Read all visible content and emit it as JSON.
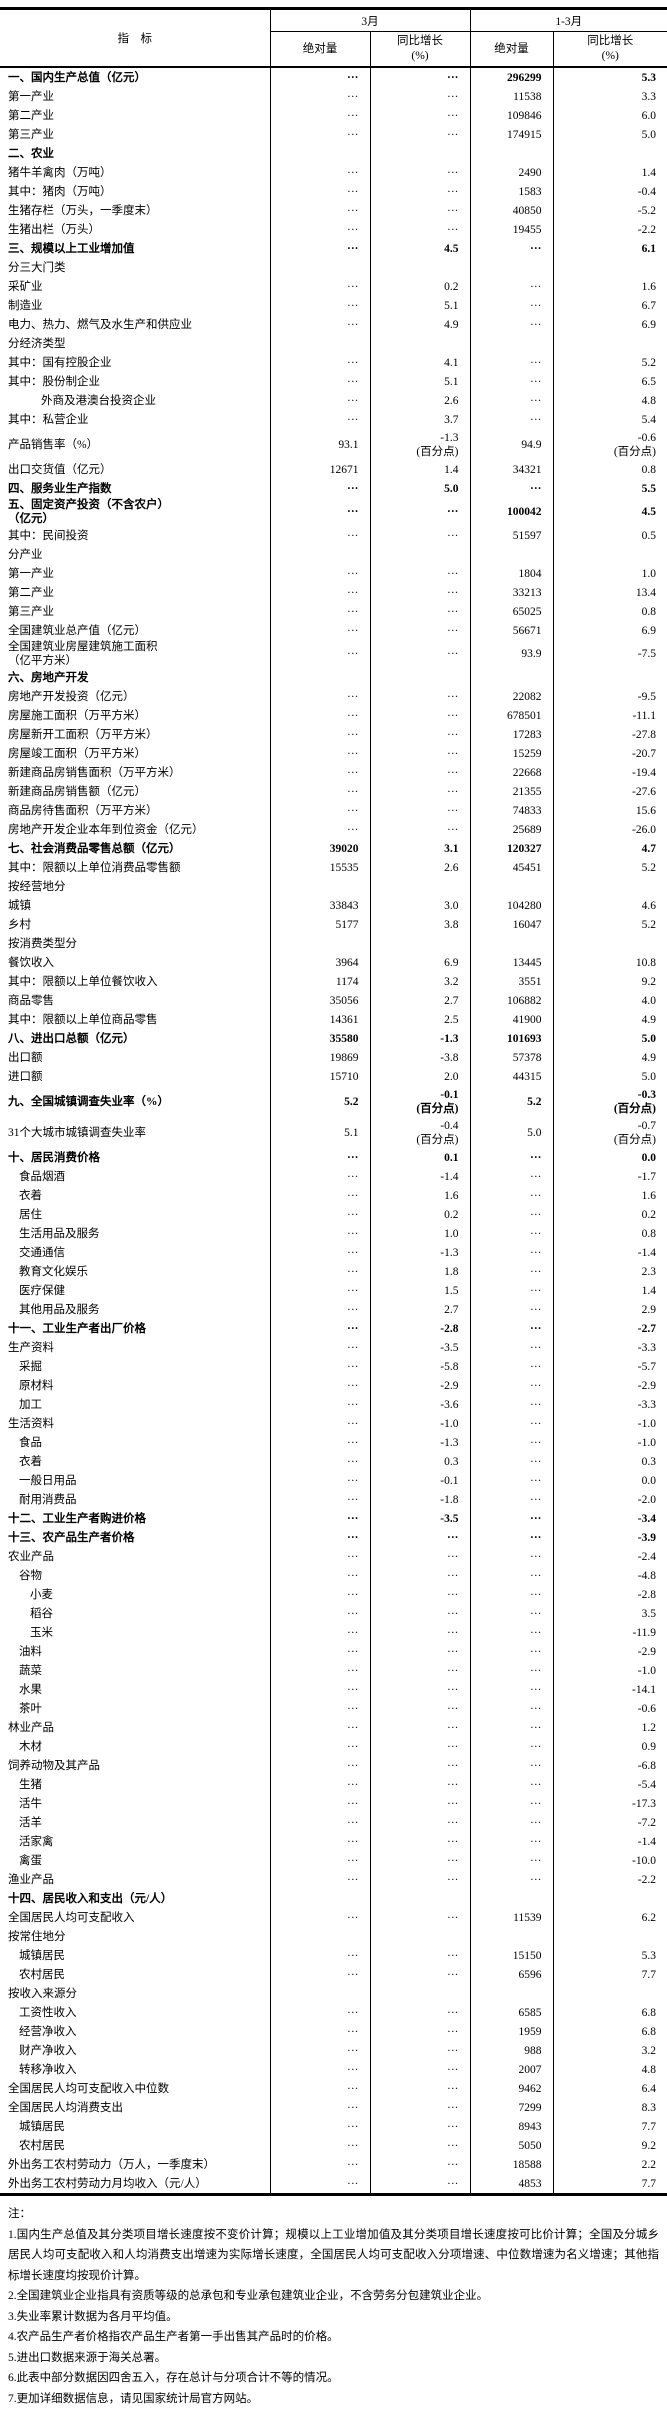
{
  "table": {
    "header": {
      "indicator": "指　标",
      "month_group": "3月",
      "quarter_group": "1-3月",
      "abs_label": "绝对量",
      "yoy_label": "同比增长",
      "yoy_unit": "(%)"
    },
    "rows": [
      {
        "label": "一、国内生产总值（亿元）",
        "bold": true,
        "m_abs": "···",
        "m_yoy": "···",
        "q_abs": "296299",
        "q_yoy": "5.3"
      },
      {
        "label": "第一产业",
        "m_abs": "···",
        "m_yoy": "···",
        "q_abs": "11538",
        "q_yoy": "3.3"
      },
      {
        "label": "第二产业",
        "m_abs": "···",
        "m_yoy": "···",
        "q_abs": "109846",
        "q_yoy": "6.0"
      },
      {
        "label": "第三产业",
        "m_abs": "···",
        "m_yoy": "···",
        "q_abs": "174915",
        "q_yoy": "5.0"
      },
      {
        "label": "二、农业",
        "bold": true
      },
      {
        "label": "猪牛羊禽肉（万吨）",
        "m_abs": "···",
        "m_yoy": "···",
        "q_abs": "2490",
        "q_yoy": "1.4"
      },
      {
        "label": "其中：猪肉（万吨）",
        "m_abs": "···",
        "m_yoy": "···",
        "q_abs": "1583",
        "q_yoy": "-0.4"
      },
      {
        "label": "生猪存栏（万头，一季度末）",
        "m_abs": "···",
        "m_yoy": "···",
        "q_abs": "40850",
        "q_yoy": "-5.2"
      },
      {
        "label": "生猪出栏（万头）",
        "m_abs": "···",
        "m_yoy": "···",
        "q_abs": "19455",
        "q_yoy": "-2.2"
      },
      {
        "label": "三、规模以上工业增加值",
        "bold": true,
        "m_abs": "···",
        "m_yoy": "4.5",
        "q_abs": "···",
        "q_yoy": "6.1"
      },
      {
        "label": "分三大门类"
      },
      {
        "label": "采矿业",
        "m_abs": "···",
        "m_yoy": "0.2",
        "q_abs": "···",
        "q_yoy": "1.6"
      },
      {
        "label": "制造业",
        "m_abs": "···",
        "m_yoy": "5.1",
        "q_abs": "···",
        "q_yoy": "6.7"
      },
      {
        "label": "电力、热力、燃气及水生产和供应业",
        "m_abs": "···",
        "m_yoy": "4.9",
        "q_abs": "···",
        "q_yoy": "6.9"
      },
      {
        "label": "分经济类型"
      },
      {
        "label": "其中：国有控股企业",
        "m_abs": "···",
        "m_yoy": "4.1",
        "q_abs": "···",
        "q_yoy": "5.2"
      },
      {
        "label": "其中：股份制企业",
        "m_abs": "···",
        "m_yoy": "5.1",
        "q_abs": "···",
        "q_yoy": "6.5"
      },
      {
        "label": "外商及港澳台投资企业",
        "indent": 3,
        "m_abs": "···",
        "m_yoy": "2.6",
        "q_abs": "···",
        "q_yoy": "4.8"
      },
      {
        "label": "其中：私营企业",
        "m_abs": "···",
        "m_yoy": "3.7",
        "q_abs": "···",
        "q_yoy": "5.4"
      },
      {
        "label": "产品销售率（%）",
        "tall": true,
        "m_abs": "93.1",
        "m_yoy": "-1.3",
        "m_yoy_note": "(百分点)",
        "q_abs": "94.9",
        "q_yoy": "-0.6",
        "q_yoy_note": "(百分点)"
      },
      {
        "label": "出口交货值（亿元）",
        "m_abs": "12671",
        "m_yoy": "1.4",
        "q_abs": "34321",
        "q_yoy": "0.8"
      },
      {
        "label": "四、服务业生产指数",
        "bold": true,
        "m_abs": "···",
        "m_yoy": "5.0",
        "q_abs": "···",
        "q_yoy": "5.5"
      },
      {
        "label": "五、固定资产投资（不含农户）",
        "label2": "（亿元）",
        "bold": true,
        "m_abs": "···",
        "m_yoy": "···",
        "q_abs": "100042",
        "q_yoy": "4.5"
      },
      {
        "label": "其中：民间投资",
        "m_abs": "···",
        "m_yoy": "···",
        "q_abs": "51597",
        "q_yoy": "0.5"
      },
      {
        "label": "分产业"
      },
      {
        "label": "第一产业",
        "m_abs": "···",
        "m_yoy": "···",
        "q_abs": "1804",
        "q_yoy": "1.0"
      },
      {
        "label": "第二产业",
        "m_abs": "···",
        "m_yoy": "···",
        "q_abs": "33213",
        "q_yoy": "13.4"
      },
      {
        "label": "第三产业",
        "m_abs": "···",
        "m_yoy": "···",
        "q_abs": "65025",
        "q_yoy": "0.8"
      },
      {
        "label": "全国建筑业总产值（亿元）",
        "m_abs": "···",
        "m_yoy": "···",
        "q_abs": "56671",
        "q_yoy": "6.9"
      },
      {
        "label": "全国建筑业房屋建筑施工面积",
        "label2": "（亿平方米）",
        "m_abs": "···",
        "m_yoy": "···",
        "q_abs": "93.9",
        "q_yoy": "-7.5"
      },
      {
        "label": "六、房地产开发",
        "bold": true
      },
      {
        "label": "房地产开发投资（亿元）",
        "m_abs": "···",
        "m_yoy": "···",
        "q_abs": "22082",
        "q_yoy": "-9.5"
      },
      {
        "label": "房屋施工面积（万平方米）",
        "m_abs": "···",
        "m_yoy": "···",
        "q_abs": "678501",
        "q_yoy": "-11.1"
      },
      {
        "label": "房屋新开工面积（万平方米）",
        "m_abs": "···",
        "m_yoy": "···",
        "q_abs": "17283",
        "q_yoy": "-27.8"
      },
      {
        "label": "房屋竣工面积（万平方米）",
        "m_abs": "···",
        "m_yoy": "···",
        "q_abs": "15259",
        "q_yoy": "-20.7"
      },
      {
        "label": "新建商品房销售面积（万平方米）",
        "m_abs": "···",
        "m_yoy": "···",
        "q_abs": "22668",
        "q_yoy": "-19.4"
      },
      {
        "label": "新建商品房销售额（亿元）",
        "m_abs": "···",
        "m_yoy": "···",
        "q_abs": "21355",
        "q_yoy": "-27.6"
      },
      {
        "label": "商品房待售面积（万平方米）",
        "m_abs": "···",
        "m_yoy": "···",
        "q_abs": "74833",
        "q_yoy": "15.6"
      },
      {
        "label": "房地产开发企业本年到位资金（亿元）",
        "m_abs": "···",
        "m_yoy": "···",
        "q_abs": "25689",
        "q_yoy": "-26.0"
      },
      {
        "label": "七、社会消费品零售总额（亿元）",
        "bold": true,
        "m_abs": "39020",
        "m_yoy": "3.1",
        "q_abs": "120327",
        "q_yoy": "4.7"
      },
      {
        "label": "其中：限额以上单位消费品零售额",
        "m_abs": "15535",
        "m_yoy": "2.6",
        "q_abs": "45451",
        "q_yoy": "5.2"
      },
      {
        "label": "按经营地分"
      },
      {
        "label": "城镇",
        "m_abs": "33843",
        "m_yoy": "3.0",
        "q_abs": "104280",
        "q_yoy": "4.6"
      },
      {
        "label": "乡村",
        "m_abs": "5177",
        "m_yoy": "3.8",
        "q_abs": "16047",
        "q_yoy": "5.2"
      },
      {
        "label": "按消费类型分"
      },
      {
        "label": "餐饮收入",
        "m_abs": "3964",
        "m_yoy": "6.9",
        "q_abs": "13445",
        "q_yoy": "10.8"
      },
      {
        "label": "其中：限额以上单位餐饮收入",
        "m_abs": "1174",
        "m_yoy": "3.2",
        "q_abs": "3551",
        "q_yoy": "9.2"
      },
      {
        "label": "商品零售",
        "m_abs": "35056",
        "m_yoy": "2.7",
        "q_abs": "106882",
        "q_yoy": "4.0"
      },
      {
        "label": "其中：限额以上单位商品零售",
        "m_abs": "14361",
        "m_yoy": "2.5",
        "q_abs": "41900",
        "q_yoy": "4.9"
      },
      {
        "label": "八、进出口总额（亿元）",
        "bold": true,
        "m_abs": "35580",
        "m_yoy": "-1.3",
        "q_abs": "101693",
        "q_yoy": "5.0"
      },
      {
        "label": "出口额",
        "m_abs": "19869",
        "m_yoy": "-3.8",
        "q_abs": "57378",
        "q_yoy": "4.9"
      },
      {
        "label": "进口额",
        "m_abs": "15710",
        "m_yoy": "2.0",
        "q_abs": "44315",
        "q_yoy": "5.0"
      },
      {
        "label": "九、全国城镇调查失业率（%）",
        "bold": true,
        "tall": true,
        "m_abs": "5.2",
        "m_yoy": "-0.1",
        "m_yoy_note": "(百分点)",
        "q_abs": "5.2",
        "q_yoy": "-0.3",
        "q_yoy_note": "(百分点)"
      },
      {
        "label": "31个大城市城镇调查失业率",
        "tall": true,
        "m_abs": "5.1",
        "m_yoy": "-0.4",
        "m_yoy_note": "(百分点)",
        "q_abs": "5.0",
        "q_yoy": "-0.7",
        "q_yoy_note": "(百分点)"
      },
      {
        "label": "十、居民消费价格",
        "bold": true,
        "m_abs": "···",
        "m_yoy": "0.1",
        "q_abs": "···",
        "q_yoy": "0.0"
      },
      {
        "label": "食品烟酒",
        "indent": 1,
        "m_abs": "···",
        "m_yoy": "-1.4",
        "q_abs": "···",
        "q_yoy": "-1.7"
      },
      {
        "label": "衣着",
        "indent": 1,
        "m_abs": "···",
        "m_yoy": "1.6",
        "q_abs": "···",
        "q_yoy": "1.6"
      },
      {
        "label": "居住",
        "indent": 1,
        "m_abs": "···",
        "m_yoy": "0.2",
        "q_abs": "···",
        "q_yoy": "0.2"
      },
      {
        "label": "生活用品及服务",
        "indent": 1,
        "m_abs": "···",
        "m_yoy": "1.0",
        "q_abs": "···",
        "q_yoy": "0.8"
      },
      {
        "label": "交通通信",
        "indent": 1,
        "m_abs": "···",
        "m_yoy": "-1.3",
        "q_abs": "···",
        "q_yoy": "-1.4"
      },
      {
        "label": "教育文化娱乐",
        "indent": 1,
        "m_abs": "···",
        "m_yoy": "1.8",
        "q_abs": "···",
        "q_yoy": "2.3"
      },
      {
        "label": "医疗保健",
        "indent": 1,
        "m_abs": "···",
        "m_yoy": "1.5",
        "q_abs": "···",
        "q_yoy": "1.4"
      },
      {
        "label": "其他用品及服务",
        "indent": 1,
        "m_abs": "···",
        "m_yoy": "2.7",
        "q_abs": "···",
        "q_yoy": "2.9"
      },
      {
        "label": "十一、工业生产者出厂价格",
        "bold": true,
        "m_abs": "···",
        "m_yoy": "-2.8",
        "q_abs": "···",
        "q_yoy": "-2.7"
      },
      {
        "label": "生产资料",
        "m_abs": "···",
        "m_yoy": "-3.5",
        "q_abs": "···",
        "q_yoy": "-3.3"
      },
      {
        "label": "采掘",
        "indent": 1,
        "m_abs": "···",
        "m_yoy": "-5.8",
        "q_abs": "···",
        "q_yoy": "-5.7"
      },
      {
        "label": "原材料",
        "indent": 1,
        "m_abs": "···",
        "m_yoy": "-2.9",
        "q_abs": "···",
        "q_yoy": "-2.9"
      },
      {
        "label": "加工",
        "indent": 1,
        "m_abs": "···",
        "m_yoy": "-3.6",
        "q_abs": "···",
        "q_yoy": "-3.3"
      },
      {
        "label": "生活资料",
        "m_abs": "···",
        "m_yoy": "-1.0",
        "q_abs": "···",
        "q_yoy": "-1.0"
      },
      {
        "label": "食品",
        "indent": 1,
        "m_abs": "···",
        "m_yoy": "-1.3",
        "q_abs": "···",
        "q_yoy": "-1.0"
      },
      {
        "label": "衣着",
        "indent": 1,
        "m_abs": "···",
        "m_yoy": "0.3",
        "q_abs": "···",
        "q_yoy": "0.3"
      },
      {
        "label": "一般日用品",
        "indent": 1,
        "m_abs": "···",
        "m_yoy": "-0.1",
        "q_abs": "···",
        "q_yoy": "0.0"
      },
      {
        "label": "耐用消费品",
        "indent": 1,
        "m_abs": "···",
        "m_yoy": "-1.8",
        "q_abs": "···",
        "q_yoy": "-2.0"
      },
      {
        "label": "十二、工业生产者购进价格",
        "bold": true,
        "m_abs": "···",
        "m_yoy": "-3.5",
        "q_abs": "···",
        "q_yoy": "-3.4"
      },
      {
        "label": "十三、农产品生产者价格",
        "bold": true,
        "m_abs": "···",
        "m_yoy": "···",
        "q_abs": "···",
        "q_yoy": "-3.9"
      },
      {
        "label": "农业产品",
        "m_abs": "···",
        "m_yoy": "···",
        "q_abs": "···",
        "q_yoy": "-2.4"
      },
      {
        "label": "谷物",
        "indent": 1,
        "m_abs": "···",
        "m_yoy": "···",
        "q_abs": "···",
        "q_yoy": "-4.8"
      },
      {
        "label": "小麦",
        "indent": 2,
        "m_abs": "···",
        "m_yoy": "···",
        "q_abs": "···",
        "q_yoy": "-2.8"
      },
      {
        "label": "稻谷",
        "indent": 2,
        "m_abs": "···",
        "m_yoy": "···",
        "q_abs": "···",
        "q_yoy": "3.5"
      },
      {
        "label": "玉米",
        "indent": 2,
        "m_abs": "···",
        "m_yoy": "···",
        "q_abs": "···",
        "q_yoy": "-11.9"
      },
      {
        "label": "油料",
        "indent": 1,
        "m_abs": "···",
        "m_yoy": "···",
        "q_abs": "···",
        "q_yoy": "-2.9"
      },
      {
        "label": "蔬菜",
        "indent": 1,
        "m_abs": "···",
        "m_yoy": "···",
        "q_abs": "···",
        "q_yoy": "-1.0"
      },
      {
        "label": "水果",
        "indent": 1,
        "m_abs": "···",
        "m_yoy": "···",
        "q_abs": "···",
        "q_yoy": "-14.1"
      },
      {
        "label": "茶叶",
        "indent": 1,
        "m_abs": "···",
        "m_yoy": "···",
        "q_abs": "···",
        "q_yoy": "-0.6"
      },
      {
        "label": "林业产品",
        "m_abs": "···",
        "m_yoy": "···",
        "q_abs": "···",
        "q_yoy": "1.2"
      },
      {
        "label": "木材",
        "indent": 1,
        "m_abs": "···",
        "m_yoy": "···",
        "q_abs": "···",
        "q_yoy": "0.9"
      },
      {
        "label": "饲养动物及其产品",
        "m_abs": "···",
        "m_yoy": "···",
        "q_abs": "···",
        "q_yoy": "-6.8"
      },
      {
        "label": "生猪",
        "indent": 1,
        "m_abs": "···",
        "m_yoy": "···",
        "q_abs": "···",
        "q_yoy": "-5.4"
      },
      {
        "label": "活牛",
        "indent": 1,
        "m_abs": "···",
        "m_yoy": "···",
        "q_abs": "···",
        "q_yoy": "-17.3"
      },
      {
        "label": "活羊",
        "indent": 1,
        "m_abs": "···",
        "m_yoy": "···",
        "q_abs": "···",
        "q_yoy": "-7.2"
      },
      {
        "label": "活家禽",
        "indent": 1,
        "m_abs": "···",
        "m_yoy": "···",
        "q_abs": "···",
        "q_yoy": "-1.4"
      },
      {
        "label": "禽蛋",
        "indent": 1,
        "m_abs": "···",
        "m_yoy": "···",
        "q_abs": "···",
        "q_yoy": "-10.0"
      },
      {
        "label": "渔业产品",
        "m_abs": "···",
        "m_yoy": "···",
        "q_abs": "···",
        "q_yoy": "-2.2"
      },
      {
        "label": "十四、居民收入和支出（元/人）",
        "bold": true
      },
      {
        "label": "全国居民人均可支配收入",
        "m_abs": "···",
        "m_yoy": "···",
        "q_abs": "11539",
        "q_yoy": "6.2"
      },
      {
        "label": "按常住地分"
      },
      {
        "label": "城镇居民",
        "indent": 1,
        "m_abs": "···",
        "m_yoy": "···",
        "q_abs": "15150",
        "q_yoy": "5.3"
      },
      {
        "label": "农村居民",
        "indent": 1,
        "m_abs": "···",
        "m_yoy": "···",
        "q_abs": "6596",
        "q_yoy": "7.7"
      },
      {
        "label": "按收入来源分"
      },
      {
        "label": "工资性收入",
        "indent": 1,
        "m_abs": "···",
        "m_yoy": "···",
        "q_abs": "6585",
        "q_yoy": "6.8"
      },
      {
        "label": "经营净收入",
        "indent": 1,
        "m_abs": "···",
        "m_yoy": "···",
        "q_abs": "1959",
        "q_yoy": "6.8"
      },
      {
        "label": "财产净收入",
        "indent": 1,
        "m_abs": "···",
        "m_yoy": "···",
        "q_abs": "988",
        "q_yoy": "3.2"
      },
      {
        "label": "转移净收入",
        "indent": 1,
        "m_abs": "···",
        "m_yoy": "···",
        "q_abs": "2007",
        "q_yoy": "4.8"
      },
      {
        "label": "全国居民人均可支配收入中位数",
        "m_abs": "···",
        "m_yoy": "···",
        "q_abs": "9462",
        "q_yoy": "6.4"
      },
      {
        "label": "全国居民人均消费支出",
        "m_abs": "···",
        "m_yoy": "···",
        "q_abs": "7299",
        "q_yoy": "8.3"
      },
      {
        "label": "城镇居民",
        "indent": 1,
        "m_abs": "···",
        "m_yoy": "···",
        "q_abs": "8943",
        "q_yoy": "7.7"
      },
      {
        "label": "农村居民",
        "indent": 1,
        "m_abs": "···",
        "m_yoy": "···",
        "q_abs": "5050",
        "q_yoy": "9.2"
      },
      {
        "label": "外出务工农村劳动力（万人，一季度末）",
        "m_abs": "···",
        "m_yoy": "···",
        "q_abs": "18588",
        "q_yoy": "2.2"
      },
      {
        "label": "外出务工农村劳动力月均收入（元/人）",
        "m_abs": "···",
        "m_yoy": "···",
        "q_abs": "4853",
        "q_yoy": "7.7"
      }
    ]
  },
  "notes": {
    "title": "注：",
    "items": [
      "1.国内生产总值及其分类项目增长速度按不变价计算；规模以上工业增加值及其分类项目增长速度按可比价计算；全国及分城乡居民人均可支配收入和人均消费支出增速为实际增长速度，全国居民人均可支配收入分项增速、中位数增速为名义增速；其他指标增长速度均按现价计算。",
      "2.全国建筑业企业指具有资质等级的总承包和专业承包建筑业企业，不含劳务分包建筑业企业。",
      "3.失业率累计数据为各月平均值。",
      "4.农产品生产者价格指农产品生产者第一手出售其产品时的价格。",
      "5.进出口数据来源于海关总署。",
      "6.此表中部分数据因四舍五入，存在总计与分项合计不等的情况。",
      "7.更加详细数据信息，请见国家统计局官方网站。"
    ]
  }
}
